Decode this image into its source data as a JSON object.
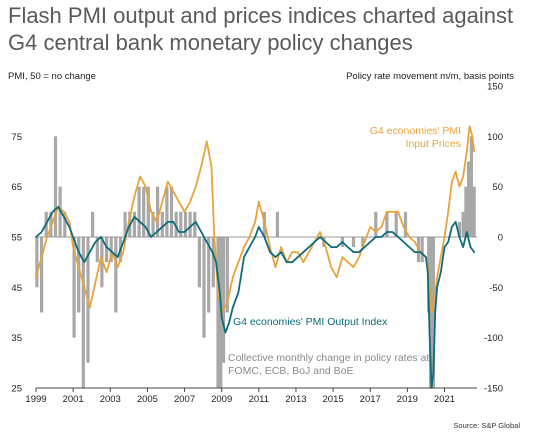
{
  "title": "Flash PMI output and prices indices charted against G4 central bank monetary policy changes",
  "source": "Source: S&P Global",
  "chart_data": {
    "type": "line+bar",
    "ylabel_left": "PMI, 50 = no change",
    "ylabel_right": "Policy rate movement m/m, basis points",
    "ylim_left": [
      25,
      85
    ],
    "ylim_right": [
      -150,
      150
    ],
    "yticks_left": [
      25,
      35,
      45,
      55,
      65,
      75
    ],
    "yticks_right": [
      -150,
      -100,
      -50,
      0,
      50,
      100,
      150
    ],
    "xlim": [
      1999.0,
      2022.75
    ],
    "xticks": [
      "1999",
      "2001",
      "2003",
      "2005",
      "2007",
      "2009",
      "2011",
      "2013",
      "2015",
      "2017",
      "2019",
      "2021"
    ],
    "annotations": {
      "prices": [
        "G4 economies' PMI",
        "Input Prices"
      ],
      "output": "G4 economies' PMI Output Index",
      "bars": [
        "Collective monthly change in policy rates at",
        "FOMC, ECB, BoJ and BoE"
      ]
    },
    "colors": {
      "prices": "#e8a33d",
      "output": "#0d6b7c",
      "bars": "#a8a8a8",
      "zero": "#999999"
    },
    "series": [
      {
        "key": "prices",
        "axis": "left",
        "x": [
          1999.0,
          1999.3,
          1999.6,
          1999.9,
          2000.2,
          2000.5,
          2000.8,
          2001.0,
          2001.3,
          2001.6,
          2001.9,
          2002.2,
          2002.5,
          2002.8,
          2003.1,
          2003.4,
          2003.7,
          2004.0,
          2004.3,
          2004.6,
          2004.9,
          2005.2,
          2005.5,
          2005.8,
          2006.1,
          2006.4,
          2006.7,
          2007.0,
          2007.3,
          2007.6,
          2007.9,
          2008.2,
          2008.45,
          2008.6,
          2008.8,
          2009.0,
          2009.3,
          2009.6,
          2009.9,
          2010.2,
          2010.5,
          2010.8,
          2011.0,
          2011.3,
          2011.6,
          2011.9,
          2012.2,
          2012.5,
          2012.8,
          2013.1,
          2013.4,
          2013.7,
          2014.0,
          2014.3,
          2014.6,
          2014.9,
          2015.2,
          2015.5,
          2015.8,
          2016.1,
          2016.4,
          2016.7,
          2017.0,
          2017.3,
          2017.6,
          2017.9,
          2018.2,
          2018.5,
          2018.8,
          2019.1,
          2019.4,
          2019.7,
          2020.0,
          2020.15,
          2020.3,
          2020.45,
          2020.6,
          2020.8,
          2021.0,
          2021.2,
          2021.4,
          2021.6,
          2021.8,
          2022.0,
          2022.2,
          2022.35,
          2022.5,
          2022.6
        ],
        "values": [
          47,
          51,
          55,
          58,
          61,
          60,
          58,
          53,
          49,
          45,
          41,
          46,
          51,
          48,
          52,
          49,
          52,
          58,
          63,
          67,
          65,
          60,
          58,
          62,
          66,
          64,
          62,
          60,
          62,
          65,
          69,
          74,
          69,
          55,
          44,
          40,
          42,
          47,
          50,
          53,
          55,
          58,
          62,
          58,
          53,
          49,
          53,
          50,
          52,
          52,
          50,
          52,
          54,
          56,
          53,
          49,
          47,
          51,
          50,
          49,
          51,
          54,
          57,
          56,
          57,
          60,
          60,
          60,
          57,
          55,
          54,
          52,
          51,
          48,
          40,
          42,
          47,
          51,
          55,
          60,
          66,
          68,
          65,
          67,
          72,
          77,
          75,
          72
        ]
      },
      {
        "key": "output",
        "axis": "left",
        "x": [
          1999.0,
          1999.3,
          1999.6,
          1999.9,
          2000.2,
          2000.5,
          2000.8,
          2001.0,
          2001.3,
          2001.6,
          2001.9,
          2002.2,
          2002.5,
          2002.8,
          2003.1,
          2003.4,
          2003.7,
          2004.0,
          2004.3,
          2004.6,
          2004.9,
          2005.2,
          2005.5,
          2005.8,
          2006.1,
          2006.4,
          2006.7,
          2007.0,
          2007.3,
          2007.6,
          2007.9,
          2008.2,
          2008.5,
          2008.7,
          2008.9,
          2009.0,
          2009.2,
          2009.4,
          2009.6,
          2009.9,
          2010.2,
          2010.5,
          2010.8,
          2011.0,
          2011.3,
          2011.6,
          2011.9,
          2012.2,
          2012.5,
          2012.8,
          2013.1,
          2013.4,
          2013.7,
          2014.0,
          2014.3,
          2014.6,
          2014.9,
          2015.2,
          2015.5,
          2015.8,
          2016.1,
          2016.4,
          2016.7,
          2017.0,
          2017.3,
          2017.6,
          2017.9,
          2018.2,
          2018.5,
          2018.8,
          2019.1,
          2019.4,
          2019.7,
          2020.0,
          2020.1,
          2020.2,
          2020.3,
          2020.4,
          2020.5,
          2020.6,
          2020.8,
          2021.0,
          2021.2,
          2021.4,
          2021.6,
          2021.8,
          2022.0,
          2022.2,
          2022.4,
          2022.6
        ],
        "values": [
          55,
          56,
          58,
          60,
          61,
          59,
          57,
          55,
          52,
          50,
          52,
          54,
          55,
          53,
          52,
          51,
          54,
          57,
          59,
          58,
          57,
          55,
          56,
          57,
          58,
          58,
          56,
          56,
          57,
          58,
          56,
          54,
          52,
          50,
          44,
          39,
          36,
          38,
          41,
          44,
          51,
          53,
          55,
          57,
          55,
          52,
          51,
          52,
          50,
          50,
          51,
          52,
          53,
          54,
          55,
          54,
          53,
          53,
          54,
          53,
          52,
          52,
          53,
          54,
          55,
          55,
          56,
          56,
          55,
          54,
          53,
          52,
          52,
          51,
          48,
          35,
          25,
          28,
          40,
          45,
          48,
          53,
          54,
          57,
          58,
          55,
          53,
          56,
          53,
          52
        ]
      },
      {
        "key": "bars",
        "axis": "right",
        "type": "bar",
        "x": [
          1999.05,
          1999.3,
          1999.55,
          1999.8,
          2000.05,
          2000.3,
          2000.55,
          2000.8,
          2001.05,
          2001.3,
          2001.55,
          2001.8,
          2002.05,
          2002.3,
          2002.55,
          2002.8,
          2003.05,
          2003.3,
          2003.55,
          2003.8,
          2004.05,
          2004.3,
          2004.55,
          2004.8,
          2005.05,
          2005.3,
          2005.55,
          2005.8,
          2006.05,
          2006.3,
          2006.55,
          2006.8,
          2007.05,
          2007.3,
          2007.55,
          2007.8,
          2008.05,
          2008.3,
          2008.55,
          2008.8,
          2008.95,
          2009.1,
          2009.3,
          2010.0,
          2011.3,
          2012.0,
          2014.5,
          2015.5,
          2016.1,
          2016.6,
          2017.3,
          2017.9,
          2018.4,
          2018.9,
          2019.6,
          2019.8,
          2020.15,
          2020.25,
          2020.4,
          2021.8,
          2022.0,
          2022.15,
          2022.3,
          2022.45,
          2022.6
        ],
        "values": [
          -50,
          -75,
          25,
          25,
          100,
          50,
          25,
          0,
          -100,
          -75,
          -150,
          -125,
          25,
          -25,
          -50,
          -25,
          -25,
          -75,
          -25,
          25,
          25,
          25,
          50,
          50,
          50,
          25,
          50,
          25,
          50,
          50,
          25,
          25,
          25,
          25,
          25,
          -50,
          -100,
          -75,
          -50,
          -150,
          -150,
          -125,
          -75,
          0,
          25,
          25,
          -10,
          -10,
          -10,
          -10,
          25,
          25,
          25,
          25,
          -25,
          -25,
          -75,
          -150,
          -150,
          15,
          25,
          50,
          75,
          100,
          50
        ]
      }
    ]
  }
}
